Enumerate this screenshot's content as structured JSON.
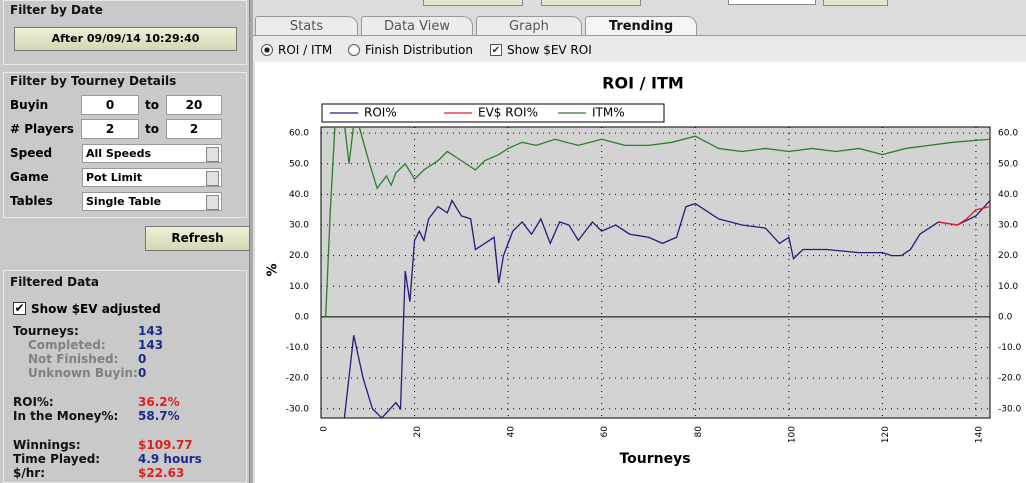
{
  "filter_by_date": {
    "title": "Filter by Date",
    "button": "After 09/09/14 10:29:40"
  },
  "filter_by_details": {
    "title": "Filter by Tourney Details",
    "ranges": [
      {
        "label": "Buyin",
        "from": "0",
        "to_word": "to",
        "to": "20"
      },
      {
        "label": "# Players",
        "from": "2",
        "to_word": "to",
        "to": "2"
      }
    ],
    "selects": [
      {
        "label": "Speed",
        "value": "All Speeds"
      },
      {
        "label": "Game",
        "value": "Pot Limit"
      },
      {
        "label": "Tables",
        "value": "Single Table"
      }
    ],
    "refresh": "Refresh"
  },
  "filtered_data": {
    "title": "Filtered Data",
    "checkbox": "Show $EV adjusted",
    "groups": [
      [
        {
          "label": "Tourneys:",
          "value": "143",
          "indent": false,
          "color": "#1c2a8c"
        },
        {
          "label": "Completed:",
          "value": "143",
          "indent": true,
          "color": "#1c2a8c"
        },
        {
          "label": "Not Finished:",
          "value": "0",
          "indent": true,
          "color": "#1c2a8c"
        },
        {
          "label": "Unknown Buyin:",
          "value": "0",
          "indent": true,
          "color": "#1c2a8c"
        }
      ],
      [
        {
          "label": "ROI%:",
          "value": "36.2%",
          "indent": false,
          "color": "#e02020"
        },
        {
          "label": "In the Money%:",
          "value": "58.7%",
          "indent": false,
          "color": "#1c2a8c"
        }
      ],
      [
        {
          "label": "Winnings:",
          "value": "$109.77",
          "indent": false,
          "color": "#e02020"
        },
        {
          "label": "Time Played:",
          "value": "4.9 hours",
          "indent": false,
          "color": "#1c2a8c"
        },
        {
          "label": "$/hr:",
          "value": "$22.63",
          "indent": false,
          "color": "#e02020"
        }
      ]
    ]
  },
  "tabs": {
    "items": [
      "Stats",
      "Data View",
      "Graph",
      "Trending"
    ],
    "active": 3
  },
  "options": {
    "radios": [
      "ROI / ITM",
      "Finish Distribution"
    ],
    "selected": 0,
    "checkbox": "Show $EV ROI",
    "checked": true
  },
  "chart_data": {
    "type": "line",
    "title": "ROI / ITM",
    "x_label": "Tourneys",
    "y_label": "%",
    "xlim": [
      0,
      143
    ],
    "xticks": [
      0,
      20,
      40,
      60,
      80,
      100,
      120,
      140
    ],
    "ylim": [
      -33,
      62
    ],
    "yticks": [
      {
        "value": -30,
        "label": "-30.0"
      },
      {
        "value": -20,
        "label": "-20.0"
      },
      {
        "value": -10,
        "label": "-10.0"
      },
      {
        "value": 0,
        "label": "0.0"
      },
      {
        "value": 10,
        "label": "10.0"
      },
      {
        "value": 20,
        "label": "20.0"
      },
      {
        "value": 30,
        "label": "30.0"
      },
      {
        "value": 40,
        "label": "40.0"
      },
      {
        "value": 50,
        "label": "50.0"
      },
      {
        "value": 60,
        "label": "60.0"
      }
    ],
    "grid": true,
    "series": [
      {
        "name": "ROI%",
        "color": "#2a1a78",
        "x": [
          5,
          7,
          9,
          11,
          13,
          16,
          17,
          18,
          19,
          20,
          21,
          22,
          23,
          25,
          27,
          28,
          30,
          32,
          33,
          35,
          37,
          38,
          39,
          41,
          43,
          45,
          47,
          49,
          51,
          53,
          55,
          58,
          60,
          63,
          66,
          70,
          73,
          76,
          78,
          80,
          85,
          90,
          95,
          98,
          100,
          101,
          103,
          108,
          115,
          120,
          122,
          124,
          126,
          128,
          132,
          136,
          140,
          143
        ],
        "values": [
          -33,
          -6,
          -20,
          -30,
          -33,
          -28,
          -30,
          15,
          5,
          25,
          28,
          25,
          32,
          36,
          34,
          38,
          33,
          32,
          22,
          24,
          26,
          11,
          20,
          28,
          31,
          27,
          32,
          24,
          31,
          30,
          25,
          31,
          28,
          30,
          27,
          26,
          24,
          26,
          36,
          37,
          32,
          30,
          29,
          24,
          26,
          19,
          22,
          22,
          21,
          21,
          20,
          20,
          22,
          27,
          31,
          30,
          33,
          38
        ]
      },
      {
        "name": "EV$ ROI%",
        "color": "#e02020",
        "x": [
          132,
          136,
          138,
          140,
          143
        ],
        "values": [
          31,
          30,
          32,
          35,
          36
        ]
      },
      {
        "name": "ITM%",
        "color": "#2e7d2e",
        "x": [
          1,
          2,
          3,
          5,
          6,
          7,
          8,
          10,
          12,
          14,
          15,
          16,
          18,
          20,
          22,
          25,
          27,
          29,
          31,
          33,
          35,
          38,
          40,
          43,
          46,
          50,
          55,
          60,
          65,
          70,
          75,
          80,
          85,
          90,
          95,
          100,
          105,
          110,
          115,
          120,
          125,
          130,
          135,
          143
        ],
        "values": [
          0,
          35,
          63,
          63,
          50,
          63,
          63,
          52,
          42,
          46,
          43,
          47,
          50,
          45,
          48,
          51,
          54,
          52,
          50,
          48,
          51,
          53,
          55,
          57,
          56,
          58,
          56,
          58,
          56,
          56,
          57,
          59,
          55,
          54,
          55,
          54,
          55,
          54,
          55,
          53,
          55,
          56,
          57,
          58
        ]
      }
    ]
  }
}
